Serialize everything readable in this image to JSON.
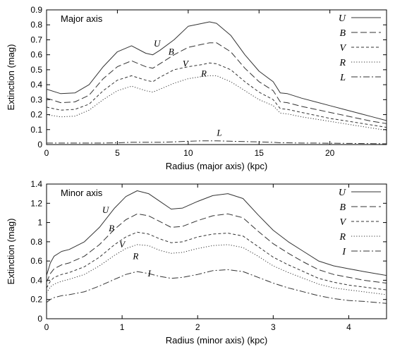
{
  "chart_data": [
    {
      "type": "line",
      "inset_label": "Major axis",
      "xlabel": "Radius (major axis) (kpc)",
      "ylabel": "Extinction (mag)",
      "xlim": [
        0,
        24
      ],
      "ylim": [
        0,
        0.9
      ],
      "xticks": [
        0,
        5,
        10,
        15,
        20
      ],
      "yticks": [
        0,
        0.1,
        0.2,
        0.3,
        0.4,
        0.5,
        0.6,
        0.7,
        0.8,
        0.9
      ],
      "grid": false,
      "legend_position": "top-right",
      "x": [
        0,
        1,
        2,
        3,
        4,
        5,
        6,
        7,
        7.5,
        8,
        9,
        10,
        11,
        11.5,
        12,
        13,
        14,
        15,
        16,
        16.5,
        17,
        18,
        19,
        20,
        21,
        22,
        23,
        24
      ],
      "series": [
        {
          "name": "U",
          "style": "solid",
          "label_at": [
            7.8,
            0.655
          ],
          "values": [
            0.37,
            0.34,
            0.345,
            0.4,
            0.52,
            0.62,
            0.66,
            0.61,
            0.6,
            0.63,
            0.7,
            0.79,
            0.81,
            0.82,
            0.81,
            0.73,
            0.6,
            0.49,
            0.42,
            0.345,
            0.34,
            0.31,
            0.285,
            0.26,
            0.235,
            0.21,
            0.185,
            0.16
          ]
        },
        {
          "name": "B",
          "style": "dashed",
          "label_at": [
            8.8,
            0.6
          ],
          "values": [
            0.31,
            0.28,
            0.285,
            0.33,
            0.44,
            0.52,
            0.56,
            0.52,
            0.51,
            0.54,
            0.6,
            0.65,
            0.67,
            0.68,
            0.68,
            0.62,
            0.51,
            0.42,
            0.36,
            0.285,
            0.28,
            0.255,
            0.235,
            0.215,
            0.195,
            0.175,
            0.155,
            0.14
          ]
        },
        {
          "name": "V",
          "style": "short-dashed",
          "label_at": [
            9.8,
            0.52
          ],
          "values": [
            0.25,
            0.23,
            0.235,
            0.27,
            0.36,
            0.43,
            0.46,
            0.43,
            0.42,
            0.45,
            0.5,
            0.52,
            0.535,
            0.545,
            0.54,
            0.5,
            0.42,
            0.35,
            0.3,
            0.24,
            0.235,
            0.215,
            0.195,
            0.175,
            0.16,
            0.145,
            0.13,
            0.115
          ]
        },
        {
          "name": "R",
          "style": "dotted",
          "label_at": [
            11.1,
            0.455
          ],
          "values": [
            0.2,
            0.185,
            0.19,
            0.23,
            0.3,
            0.36,
            0.39,
            0.36,
            0.35,
            0.37,
            0.41,
            0.44,
            0.455,
            0.46,
            0.46,
            0.42,
            0.36,
            0.3,
            0.26,
            0.21,
            0.205,
            0.185,
            0.17,
            0.155,
            0.14,
            0.125,
            0.11,
            0.095
          ]
        },
        {
          "name": "L",
          "style": "dash-dot",
          "label_at": [
            12.2,
            0.06
          ],
          "values": [
            0.01,
            0.01,
            0.01,
            0.01,
            0.01,
            0.012,
            0.015,
            0.015,
            0.015,
            0.015,
            0.018,
            0.022,
            0.025,
            0.025,
            0.025,
            0.022,
            0.02,
            0.018,
            0.015,
            0.012,
            0.012,
            0.01,
            0.01,
            0.009,
            0.008,
            0.007,
            0.006,
            0.005
          ]
        }
      ]
    },
    {
      "type": "line",
      "inset_label": "Minor axis",
      "xlabel": "Radius (minor axis) (kpc)",
      "ylabel": "Extinction (mag)",
      "xlim": [
        0,
        4.5
      ],
      "ylim": [
        0,
        1.4
      ],
      "xticks": [
        0,
        1,
        2,
        3,
        4
      ],
      "yticks": [
        0,
        0.2,
        0.4,
        0.6,
        0.8,
        1,
        1.2,
        1.4
      ],
      "grid": false,
      "legend_position": "top-right",
      "x": [
        0,
        0.05,
        0.1,
        0.2,
        0.3,
        0.5,
        0.7,
        0.9,
        1.05,
        1.2,
        1.35,
        1.5,
        1.65,
        1.8,
        2.0,
        2.2,
        2.4,
        2.6,
        2.8,
        3.0,
        3.2,
        3.4,
        3.6,
        3.8,
        4.0,
        4.2,
        4.5
      ],
      "series": [
        {
          "name": "U",
          "style": "solid",
          "label_at": [
            0.78,
            1.1
          ],
          "values": [
            0.45,
            0.58,
            0.65,
            0.7,
            0.72,
            0.8,
            0.95,
            1.15,
            1.27,
            1.33,
            1.3,
            1.22,
            1.14,
            1.15,
            1.22,
            1.28,
            1.3,
            1.25,
            1.08,
            0.92,
            0.8,
            0.7,
            0.6,
            0.55,
            0.52,
            0.49,
            0.45
          ]
        },
        {
          "name": "B",
          "style": "dashed",
          "label_at": [
            0.86,
            0.91
          ],
          "values": [
            0.38,
            0.47,
            0.52,
            0.56,
            0.58,
            0.65,
            0.77,
            0.93,
            1.03,
            1.09,
            1.07,
            1.01,
            0.95,
            0.96,
            1.02,
            1.07,
            1.09,
            1.05,
            0.91,
            0.78,
            0.68,
            0.59,
            0.51,
            0.46,
            0.43,
            0.4,
            0.37
          ]
        },
        {
          "name": "V",
          "style": "short-dashed",
          "label_at": [
            1.0,
            0.74
          ],
          "values": [
            0.32,
            0.39,
            0.43,
            0.46,
            0.48,
            0.54,
            0.64,
            0.77,
            0.85,
            0.9,
            0.88,
            0.83,
            0.79,
            0.8,
            0.85,
            0.88,
            0.89,
            0.86,
            0.75,
            0.64,
            0.56,
            0.49,
            0.42,
            0.38,
            0.35,
            0.33,
            0.3
          ]
        },
        {
          "name": "R",
          "style": "dotted",
          "label_at": [
            1.18,
            0.62
          ],
          "values": [
            0.27,
            0.33,
            0.36,
            0.39,
            0.41,
            0.46,
            0.55,
            0.66,
            0.73,
            0.77,
            0.76,
            0.71,
            0.68,
            0.69,
            0.73,
            0.76,
            0.77,
            0.74,
            0.65,
            0.55,
            0.48,
            0.42,
            0.36,
            0.32,
            0.3,
            0.28,
            0.25
          ]
        },
        {
          "name": "I",
          "style": "dash-dot",
          "label_at": [
            1.36,
            0.44
          ],
          "values": [
            0.17,
            0.2,
            0.22,
            0.24,
            0.25,
            0.28,
            0.34,
            0.41,
            0.46,
            0.49,
            0.47,
            0.44,
            0.42,
            0.43,
            0.46,
            0.5,
            0.51,
            0.49,
            0.43,
            0.37,
            0.32,
            0.28,
            0.24,
            0.21,
            0.19,
            0.18,
            0.16
          ]
        }
      ]
    }
  ],
  "colors": {
    "line": "#333333",
    "axis": "#000000"
  }
}
